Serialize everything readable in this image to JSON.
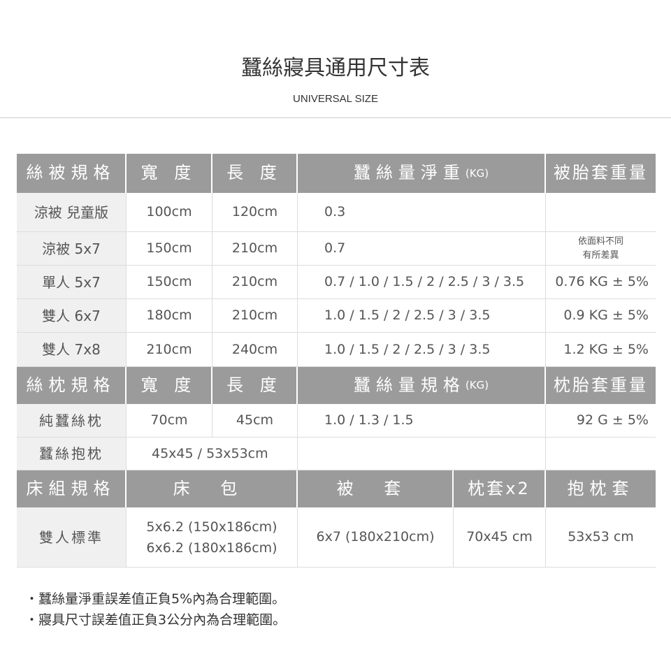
{
  "title": "蠶絲寢具通用尺寸表",
  "subtitle": "UNIVERSAL SIZE",
  "quilt": {
    "headers": [
      "絲被規格",
      "寬 度",
      "長 度",
      "蠶絲量淨重",
      "(KG)",
      "被胎套重量"
    ],
    "rows": [
      [
        "涼被 兒童版",
        "100cm",
        "120cm",
        "0.3",
        ""
      ],
      [
        "涼被 5x7",
        "150cm",
        "210cm",
        "0.7",
        "依面料不同\n有所差異"
      ],
      [
        "單人 5x7",
        "150cm",
        "210cm",
        "0.7 / 1.0 / 1.5 / 2 / 2.5 / 3 / 3.5",
        "0.76 KG ± 5%"
      ],
      [
        "雙人 6x7",
        "180cm",
        "210cm",
        "1.0 / 1.5 / 2 / 2.5 / 3 / 3.5",
        "0.9 KG ± 5%"
      ],
      [
        "雙人 7x8",
        "210cm",
        "240cm",
        "1.0 / 1.5 / 2 / 2.5 / 3 / 3.5",
        "1.2 KG ± 5%"
      ]
    ]
  },
  "pillow": {
    "headers": [
      "絲枕規格",
      "寬 度",
      "長 度",
      "蠶絲量規格",
      "(KG)",
      "枕胎套重量"
    ],
    "rows": [
      [
        "純蠶絲枕",
        "70cm",
        "45cm",
        "1.0 / 1.3 / 1.5",
        "92 G ± 5%"
      ],
      [
        "蠶絲抱枕",
        "45x45 / 53x53cm"
      ]
    ]
  },
  "bedset": {
    "headers": [
      "床組規格",
      "床 包",
      "被 套",
      "枕套x2",
      "抱枕套"
    ],
    "rows": [
      [
        "雙人標準",
        "5x6.2 (150x186cm)",
        "6x6.2 (180x186cm)",
        "6x7 (180x210cm)",
        "70x45 cm",
        "53x53 cm"
      ]
    ]
  },
  "notes": [
    "・蠶絲量淨重誤差值正負5%內為合理範圍。",
    "・寢具尺寸誤差值正負3公分內為合理範圍。"
  ]
}
